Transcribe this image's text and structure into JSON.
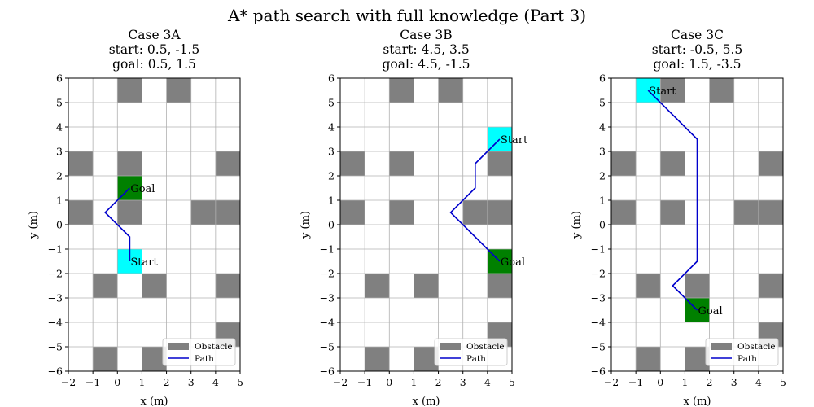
{
  "figure": {
    "title": "A* path search with full knowledge (Part 3)"
  },
  "chart_data": [
    {
      "type": "grid-path",
      "title": [
        "Case 3A",
        "start: 0.5, -1.5",
        "goal: 0.5, 1.5"
      ],
      "xlabel": "x (m)",
      "ylabel": "y (m)",
      "xlim": [
        -2,
        5
      ],
      "ylim": [
        -6,
        6
      ],
      "xticks": [
        -2,
        -1,
        0,
        1,
        2,
        3,
        4,
        5
      ],
      "yticks": [
        -6,
        -5,
        -4,
        -3,
        -2,
        -1,
        0,
        1,
        2,
        3,
        4,
        5,
        6
      ],
      "grid": true,
      "obstacles": [
        [
          0,
          5
        ],
        [
          2,
          5
        ],
        [
          -2,
          2
        ],
        [
          0,
          2
        ],
        [
          4,
          2
        ],
        [
          -2,
          0
        ],
        [
          0,
          0
        ],
        [
          3,
          0
        ],
        [
          4,
          0
        ],
        [
          -1,
          -3
        ],
        [
          1,
          -3
        ],
        [
          4,
          -3
        ],
        [
          4,
          -5
        ],
        [
          -1,
          -6
        ],
        [
          1,
          -6
        ]
      ],
      "start_cell": [
        0,
        -2
      ],
      "goal_cell": [
        0,
        1
      ],
      "start_label": "Start",
      "start_label_at": [
        0.5,
        -1.5
      ],
      "goal_label": "Goal",
      "goal_label_at": [
        0.5,
        1.5
      ],
      "path": {
        "name": "Path",
        "color": "#0000cc",
        "points": [
          [
            0.5,
            -1.5
          ],
          [
            0.5,
            -0.5
          ],
          [
            -0.5,
            0.5
          ],
          [
            0.5,
            1.5
          ]
        ]
      },
      "legend": {
        "position": "lower right",
        "items": [
          "Obstacle",
          "Path"
        ]
      }
    },
    {
      "type": "grid-path",
      "title": [
        "Case 3B",
        "start: 4.5, 3.5",
        "goal: 4.5, -1.5"
      ],
      "xlabel": "x (m)",
      "ylabel": "y (m)",
      "xlim": [
        -2,
        5
      ],
      "ylim": [
        -6,
        6
      ],
      "xticks": [
        -2,
        -1,
        0,
        1,
        2,
        3,
        4,
        5
      ],
      "yticks": [
        -6,
        -5,
        -4,
        -3,
        -2,
        -1,
        0,
        1,
        2,
        3,
        4,
        5,
        6
      ],
      "grid": true,
      "obstacles": [
        [
          0,
          5
        ],
        [
          2,
          5
        ],
        [
          -2,
          2
        ],
        [
          0,
          2
        ],
        [
          4,
          2
        ],
        [
          -2,
          0
        ],
        [
          0,
          0
        ],
        [
          3,
          0
        ],
        [
          4,
          0
        ],
        [
          -1,
          -3
        ],
        [
          1,
          -3
        ],
        [
          4,
          -3
        ],
        [
          4,
          -5
        ],
        [
          -1,
          -6
        ],
        [
          1,
          -6
        ]
      ],
      "start_cell": [
        4,
        3
      ],
      "goal_cell": [
        4,
        -2
      ],
      "start_label": "Start",
      "start_label_at": [
        4.5,
        3.5
      ],
      "goal_label": "Goal",
      "goal_label_at": [
        4.5,
        -1.5
      ],
      "path": {
        "name": "Path",
        "color": "#0000cc",
        "points": [
          [
            4.5,
            3.5
          ],
          [
            3.5,
            2.5
          ],
          [
            3.5,
            1.5
          ],
          [
            2.5,
            0.5
          ],
          [
            4.5,
            -1.5
          ]
        ]
      },
      "legend": {
        "position": "lower right",
        "items": [
          "Obstacle",
          "Path"
        ]
      }
    },
    {
      "type": "grid-path",
      "title": [
        "Case 3C",
        "start: -0.5, 5.5",
        "goal: 1.5, -3.5"
      ],
      "xlabel": "x (m)",
      "ylabel": "y (m)",
      "xlim": [
        -2,
        5
      ],
      "ylim": [
        -6,
        6
      ],
      "xticks": [
        -2,
        -1,
        0,
        1,
        2,
        3,
        4,
        5
      ],
      "yticks": [
        -6,
        -5,
        -4,
        -3,
        -2,
        -1,
        0,
        1,
        2,
        3,
        4,
        5,
        6
      ],
      "grid": true,
      "obstacles": [
        [
          0,
          5
        ],
        [
          2,
          5
        ],
        [
          -2,
          2
        ],
        [
          0,
          2
        ],
        [
          4,
          2
        ],
        [
          -2,
          0
        ],
        [
          0,
          0
        ],
        [
          3,
          0
        ],
        [
          4,
          0
        ],
        [
          -1,
          -3
        ],
        [
          1,
          -3
        ],
        [
          4,
          -3
        ],
        [
          4,
          -5
        ],
        [
          -1,
          -6
        ],
        [
          1,
          -6
        ]
      ],
      "start_cell": [
        -1,
        5
      ],
      "goal_cell": [
        1,
        -4
      ],
      "start_label": "Start",
      "start_label_at": [
        -0.5,
        5.5
      ],
      "goal_label": "Goal",
      "goal_label_at": [
        1.5,
        -3.5
      ],
      "path": {
        "name": "Path",
        "color": "#0000cc",
        "points": [
          [
            -0.5,
            5.5
          ],
          [
            1.5,
            3.5
          ],
          [
            1.5,
            -1.5
          ],
          [
            0.5,
            -2.5
          ],
          [
            1.5,
            -3.5
          ]
        ]
      },
      "legend": {
        "position": "lower right",
        "items": [
          "Obstacle",
          "Path"
        ]
      }
    }
  ],
  "colors": {
    "obstacle": "#808080",
    "start": "#00ffff",
    "goal": "#008000",
    "grid": "#b0b0b0"
  }
}
